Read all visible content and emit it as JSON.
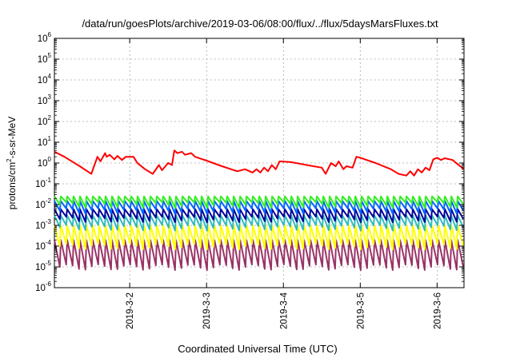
{
  "chart_data": {
    "type": "line",
    "title": "/data/run/goesPlots/archive/2019-03-06/08:00/flux/../flux/5daysMarsFluxes.txt",
    "xlabel": "Coordinated Universal Time (UTC)",
    "ylabel": {
      "base": "protons/cm",
      "sup": "2",
      "rest": "-s-sr-MeV"
    },
    "y_scale": "log",
    "ylim": [
      1e-06,
      1000000.0
    ],
    "grid": true,
    "legend": "none",
    "y_ticks": [
      {
        "base": "10",
        "exp": "-6"
      },
      {
        "base": "10",
        "exp": "-5"
      },
      {
        "base": "10",
        "exp": "-4"
      },
      {
        "base": "10",
        "exp": "-3"
      },
      {
        "base": "10",
        "exp": "-2"
      },
      {
        "base": "10",
        "exp": "-1"
      },
      {
        "base": "10",
        "exp": "0"
      },
      {
        "base": "10",
        "exp": "1"
      },
      {
        "base": "10",
        "exp": "2"
      },
      {
        "base": "10",
        "exp": "3"
      },
      {
        "base": "10",
        "exp": "4"
      },
      {
        "base": "10",
        "exp": "5"
      },
      {
        "base": "10",
        "exp": "6"
      }
    ],
    "x_ticks": [
      "2019-3-2",
      "2019-3-3",
      "2019-3-4",
      "2019-3-5",
      "2019-3-6"
    ],
    "x_tick_days": [
      2,
      3,
      4,
      5,
      6
    ],
    "xlim": [
      1.02,
      6.35
    ],
    "series": [
      {
        "color": "#ff0000",
        "x": [
          1.02,
          1.15,
          1.35,
          1.5,
          1.58,
          1.62,
          1.68,
          1.7,
          1.74,
          1.8,
          1.84,
          1.9,
          1.95,
          2.05,
          2.1,
          2.2,
          2.3,
          2.38,
          2.42,
          2.5,
          2.55,
          2.58,
          2.62,
          2.68,
          2.72,
          2.8,
          2.85,
          3.0,
          3.2,
          3.4,
          3.5,
          3.6,
          3.65,
          3.7,
          3.75,
          3.8,
          3.85,
          3.9,
          3.95,
          4.1,
          4.3,
          4.5,
          4.55,
          4.62,
          4.68,
          4.72,
          4.78,
          4.82,
          4.9,
          4.95,
          5.0,
          5.2,
          5.4,
          5.5,
          5.6,
          5.65,
          5.7,
          5.75,
          5.8,
          5.85,
          5.9,
          5.95,
          6.0,
          6.05,
          6.1,
          6.2,
          6.35
        ],
        "values": [
          3.5,
          2.0,
          0.7,
          0.3,
          2.0,
          1.2,
          3.0,
          2.0,
          2.5,
          1.5,
          2.2,
          1.4,
          2.0,
          2.0,
          1.0,
          0.5,
          0.3,
          0.8,
          0.45,
          1.0,
          0.8,
          4.0,
          3.0,
          3.5,
          2.5,
          3.0,
          2.0,
          1.3,
          0.7,
          0.4,
          0.5,
          0.35,
          0.5,
          0.35,
          0.6,
          0.4,
          0.8,
          0.5,
          1.2,
          1.1,
          0.8,
          0.6,
          0.3,
          1.0,
          0.7,
          1.2,
          0.5,
          0.7,
          0.6,
          2.0,
          1.8,
          1.0,
          0.5,
          0.3,
          0.25,
          0.4,
          0.25,
          0.5,
          0.35,
          0.6,
          0.45,
          1.5,
          1.8,
          1.4,
          1.7,
          1.4,
          0.5
        ]
      }
    ],
    "oscillating_series": [
      {
        "color": "#33ee22",
        "low": 0.01,
        "high": 0.025
      },
      {
        "color": "#0066ff",
        "low": 0.005,
        "high": 0.015
      },
      {
        "color": "#000099",
        "low": 0.002,
        "high": 0.006
      },
      {
        "color": "#33bbbb",
        "low": 0.0008,
        "high": 0.003
      },
      {
        "color": "#ffff00",
        "low": 0.0001,
        "high": 0.001
      },
      {
        "color": "#993366",
        "low": 1e-05,
        "high": 0.0002
      }
    ],
    "oscillation_period_days": 0.0833
  }
}
